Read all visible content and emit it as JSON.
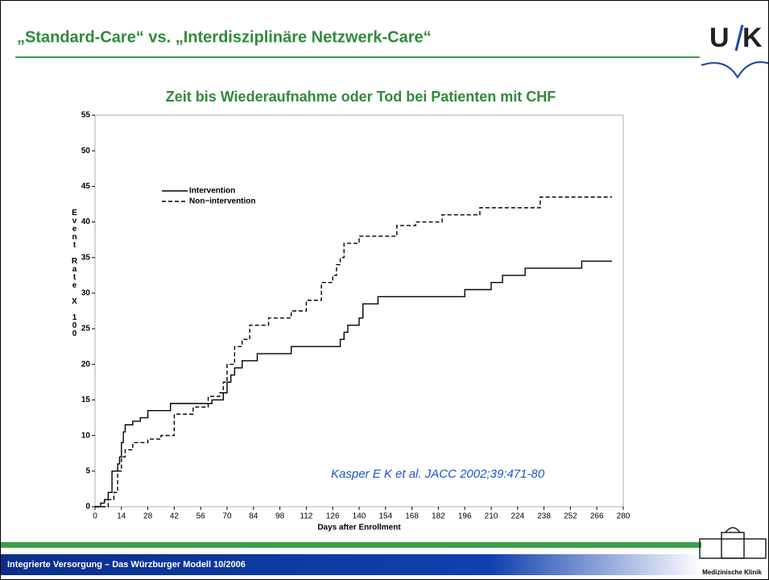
{
  "header": {
    "title": "„Standard-Care“ vs. „Interdisziplinäre Netzwerk-Care“",
    "logo": [
      "U",
      "K"
    ]
  },
  "chart_data": {
    "type": "step",
    "title": "Zeit bis Wiederaufnahme oder Tod bei Patienten mit CHF",
    "xlabel": "Days after Enrollment",
    "ylabel": "Event Rate X 100",
    "xlim": [
      0,
      280
    ],
    "xticks": [
      0,
      14,
      28,
      42,
      56,
      70,
      84,
      98,
      112,
      126,
      140,
      154,
      168,
      182,
      196,
      210,
      224,
      238,
      252,
      266,
      280
    ],
    "ylim": [
      0,
      55
    ],
    "yticks": [
      0,
      5,
      10,
      15,
      20,
      25,
      30,
      35,
      40,
      45,
      50,
      55
    ],
    "legend": "upper left",
    "series": [
      {
        "name": "Intervention",
        "color": "#000000",
        "dash": "solid",
        "x": [
          0,
          3,
          5,
          7,
          9,
          12,
          13,
          14,
          15,
          16,
          20,
          24,
          28,
          40,
          62,
          68,
          70,
          72,
          74,
          78,
          86,
          104,
          130,
          132,
          134,
          140,
          142,
          150,
          196,
          210,
          216,
          228,
          258,
          274
        ],
        "values": [
          0,
          0.5,
          1,
          2,
          5,
          6,
          7,
          9,
          10.5,
          11.5,
          12,
          12.5,
          13.5,
          14.5,
          15,
          16,
          17.5,
          18.5,
          19.5,
          20.5,
          21.5,
          22.5,
          23.5,
          24.5,
          25.5,
          26.5,
          28.5,
          29.5,
          30.5,
          31.5,
          32.5,
          33.5,
          34.5,
          34.5
        ]
      },
      {
        "name": "Non−intervention",
        "color": "#000000",
        "dash": "dashed",
        "x": [
          0,
          7,
          10,
          12,
          14,
          16,
          20,
          28,
          35,
          42,
          52,
          60,
          66,
          68,
          70,
          74,
          78,
          82,
          92,
          104,
          112,
          120,
          126,
          128,
          130,
          132,
          140,
          160,
          170,
          184,
          204,
          236,
          274
        ],
        "values": [
          0,
          1,
          2,
          5,
          7,
          8,
          9,
          9.5,
          10,
          13,
          14,
          15.5,
          16,
          17.5,
          20,
          22.5,
          23.5,
          25.5,
          26.5,
          27.5,
          29,
          31.5,
          32.5,
          34,
          35,
          37,
          38,
          39.5,
          40,
          41,
          42,
          43.5,
          43.5
        ]
      }
    ],
    "annotation": "Kasper E  K et al. JACC  2002;39:471-80"
  },
  "footer": {
    "text": "Integrierte Versorgung – Das Würzburger Modell  10/2006",
    "logo_caption": "Medizinische Klinik"
  }
}
